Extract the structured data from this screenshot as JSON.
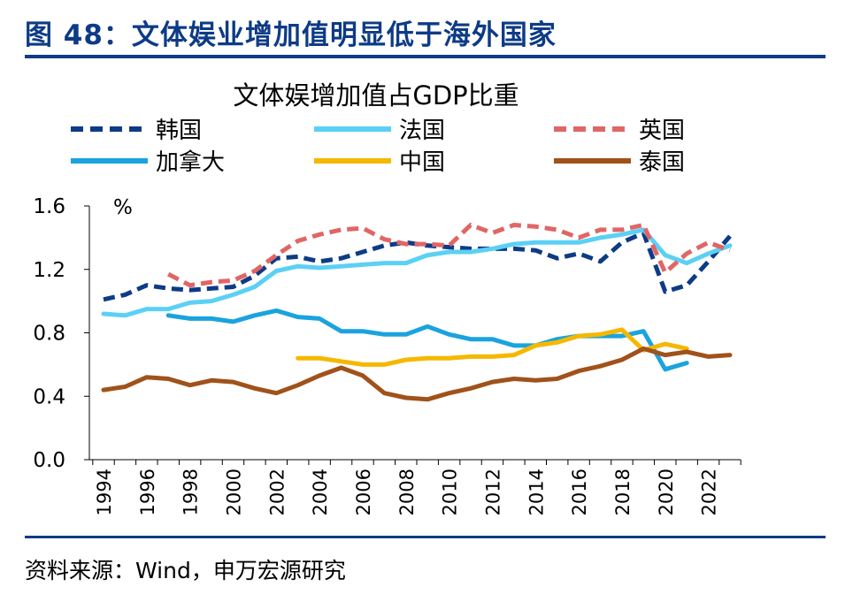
{
  "figure": {
    "title": "图 48：文体娱业增加值明显低于海外国家",
    "source": "资料来源：Wind，申万宏源研究"
  },
  "chart_data": {
    "type": "line",
    "title": "文体娱增加值占GDP比重",
    "unit": "%",
    "x_tick_labels": [
      "1994",
      "1996",
      "1998",
      "2000",
      "2002",
      "2004",
      "2006",
      "2008",
      "2010",
      "2012",
      "2014",
      "2016",
      "2018",
      "2020",
      "2022"
    ],
    "xlim": [
      1994,
      2023
    ],
    "ylim": [
      0,
      1.6
    ],
    "y_ticks": [
      0,
      0.4,
      0.8,
      1.2,
      1.6
    ],
    "y_tick_labels": [
      "0.0",
      "0.4",
      "0.8",
      "1.2",
      "1.6"
    ],
    "grid": false,
    "legend_position": "top",
    "series": [
      {
        "name": "韩国",
        "color": "#0d3b86",
        "dash": true,
        "x": [
          1994,
          1995,
          1996,
          1997,
          1998,
          1999,
          2000,
          2001,
          2002,
          2003,
          2004,
          2005,
          2006,
          2007,
          2008,
          2009,
          2010,
          2011,
          2012,
          2013,
          2014,
          2015,
          2016,
          2017,
          2018,
          2019,
          2020,
          2021,
          2022,
          2023
        ],
        "values": [
          1.01,
          1.04,
          1.1,
          1.08,
          1.07,
          1.08,
          1.09,
          1.16,
          1.27,
          1.28,
          1.25,
          1.27,
          1.31,
          1.35,
          1.37,
          1.35,
          1.34,
          1.33,
          1.33,
          1.33,
          1.32,
          1.27,
          1.3,
          1.25,
          1.37,
          1.43,
          1.06,
          1.1,
          1.25,
          1.41
        ]
      },
      {
        "name": "法国",
        "color": "#5bd0f5",
        "dash": false,
        "x": [
          1994,
          1995,
          1996,
          1997,
          1998,
          1999,
          2000,
          2001,
          2002,
          2003,
          2004,
          2005,
          2006,
          2007,
          2008,
          2009,
          2010,
          2011,
          2012,
          2013,
          2014,
          2015,
          2016,
          2017,
          2018,
          2019,
          2020,
          2021,
          2022,
          2023
        ],
        "values": [
          0.92,
          0.91,
          0.95,
          0.95,
          0.99,
          1.0,
          1.04,
          1.09,
          1.19,
          1.22,
          1.21,
          1.22,
          1.23,
          1.24,
          1.24,
          1.29,
          1.31,
          1.31,
          1.33,
          1.36,
          1.37,
          1.37,
          1.37,
          1.4,
          1.42,
          1.45,
          1.29,
          1.24,
          1.3,
          1.35
        ]
      },
      {
        "name": "英国",
        "color": "#e06666",
        "dash": true,
        "x": [
          1997,
          1998,
          1999,
          2000,
          2001,
          2002,
          2003,
          2004,
          2005,
          2006,
          2007,
          2008,
          2009,
          2010,
          2011,
          2012,
          2013,
          2014,
          2015,
          2016,
          2017,
          2018,
          2019,
          2020,
          2021,
          2022,
          2023
        ],
        "values": [
          1.17,
          1.1,
          1.12,
          1.13,
          1.19,
          1.29,
          1.38,
          1.42,
          1.45,
          1.46,
          1.39,
          1.36,
          1.36,
          1.35,
          1.48,
          1.43,
          1.48,
          1.47,
          1.45,
          1.4,
          1.45,
          1.45,
          1.48,
          1.18,
          1.3,
          1.37,
          1.32
        ]
      },
      {
        "name": "加拿大",
        "color": "#1aa3de",
        "dash": false,
        "x": [
          1997,
          1998,
          1999,
          2000,
          2001,
          2002,
          2003,
          2004,
          2005,
          2006,
          2007,
          2008,
          2009,
          2010,
          2011,
          2012,
          2013,
          2014,
          2015,
          2016,
          2017,
          2018,
          2019,
          2020,
          2021
        ],
        "values": [
          0.91,
          0.89,
          0.89,
          0.87,
          0.91,
          0.94,
          0.9,
          0.89,
          0.81,
          0.81,
          0.79,
          0.79,
          0.84,
          0.79,
          0.76,
          0.76,
          0.72,
          0.72,
          0.76,
          0.78,
          0.78,
          0.78,
          0.81,
          0.57,
          0.61
        ]
      },
      {
        "name": "中国",
        "color": "#f5b800",
        "dash": false,
        "x": [
          2003,
          2004,
          2005,
          2006,
          2007,
          2008,
          2009,
          2010,
          2011,
          2012,
          2013,
          2014,
          2015,
          2016,
          2017,
          2018,
          2019,
          2020,
          2021
        ],
        "values": [
          0.64,
          0.64,
          0.62,
          0.6,
          0.6,
          0.63,
          0.64,
          0.64,
          0.65,
          0.65,
          0.66,
          0.72,
          0.74,
          0.78,
          0.79,
          0.82,
          0.69,
          0.73,
          0.7
        ]
      },
      {
        "name": "泰国",
        "color": "#a0521a",
        "dash": false,
        "x": [
          1994,
          1995,
          1996,
          1997,
          1998,
          1999,
          2000,
          2001,
          2002,
          2003,
          2004,
          2005,
          2006,
          2007,
          2008,
          2009,
          2010,
          2011,
          2012,
          2013,
          2014,
          2015,
          2016,
          2017,
          2018,
          2019,
          2020,
          2021,
          2022,
          2023
        ],
        "values": [
          0.44,
          0.46,
          0.52,
          0.51,
          0.47,
          0.5,
          0.49,
          0.45,
          0.42,
          0.47,
          0.53,
          0.58,
          0.53,
          0.42,
          0.39,
          0.38,
          0.42,
          0.45,
          0.49,
          0.51,
          0.5,
          0.51,
          0.56,
          0.59,
          0.63,
          0.7,
          0.66,
          0.68,
          0.65,
          0.66
        ]
      }
    ]
  }
}
